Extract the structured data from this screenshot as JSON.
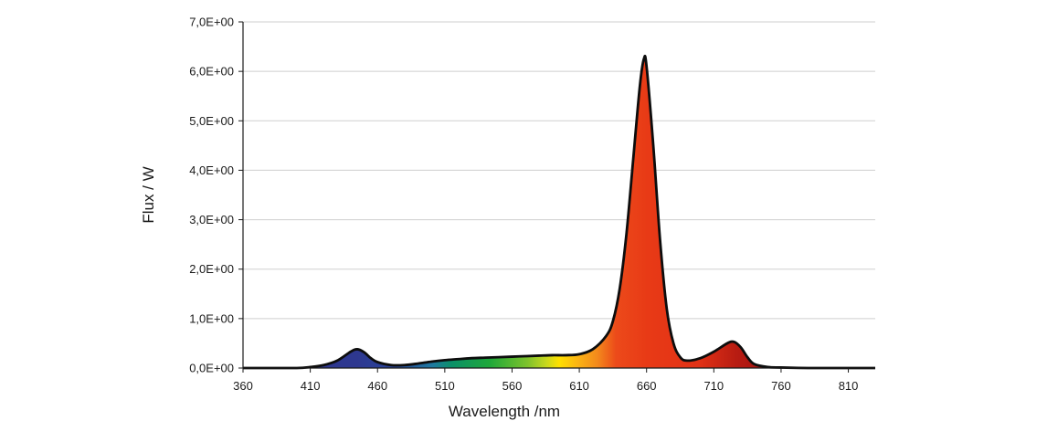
{
  "chart_data": {
    "type": "area",
    "title": "",
    "xlabel": "Wavelength /nm",
    "ylabel": "Flux / W",
    "xlim": [
      360,
      830
    ],
    "ylim": [
      0,
      7
    ],
    "x_ticks": [
      360,
      410,
      460,
      510,
      560,
      610,
      660,
      710,
      760,
      810
    ],
    "x_tick_labels": [
      "360",
      "410",
      "460",
      "510",
      "560",
      "610",
      "660",
      "710",
      "760",
      "810"
    ],
    "y_ticks": [
      0,
      1,
      2,
      3,
      4,
      5,
      6,
      7
    ],
    "y_tick_labels": [
      "0,0E+00",
      "1,0E+00",
      "2,0E+00",
      "3,0E+00",
      "4,0E+00",
      "5,0E+00",
      "6,0E+00",
      "7,0E+00"
    ],
    "grid": "horizontal",
    "fill": "visible-spectrum gradient",
    "series": [
      {
        "x": [
          360,
          380,
          400,
          410,
          420,
          430,
          440,
          445,
          450,
          455,
          460,
          470,
          480,
          490,
          500,
          510,
          520,
          530,
          540,
          550,
          560,
          570,
          580,
          590,
          600,
          610,
          620,
          630,
          635,
          640,
          645,
          650,
          655,
          658,
          660,
          665,
          670,
          675,
          680,
          685,
          690,
          700,
          710,
          720,
          725,
          730,
          735,
          740,
          750,
          760,
          780,
          800,
          830
        ],
        "y": [
          0.0,
          0.0,
          0.0,
          0.02,
          0.06,
          0.15,
          0.33,
          0.38,
          0.32,
          0.2,
          0.12,
          0.06,
          0.06,
          0.09,
          0.13,
          0.16,
          0.18,
          0.2,
          0.21,
          0.22,
          0.23,
          0.24,
          0.25,
          0.26,
          0.26,
          0.28,
          0.38,
          0.65,
          0.95,
          1.6,
          2.7,
          4.2,
          5.7,
          6.25,
          6.1,
          4.5,
          2.6,
          1.2,
          0.5,
          0.22,
          0.15,
          0.2,
          0.33,
          0.5,
          0.53,
          0.42,
          0.22,
          0.08,
          0.02,
          0.01,
          0.0,
          0.0,
          0.0
        ]
      }
    ]
  }
}
